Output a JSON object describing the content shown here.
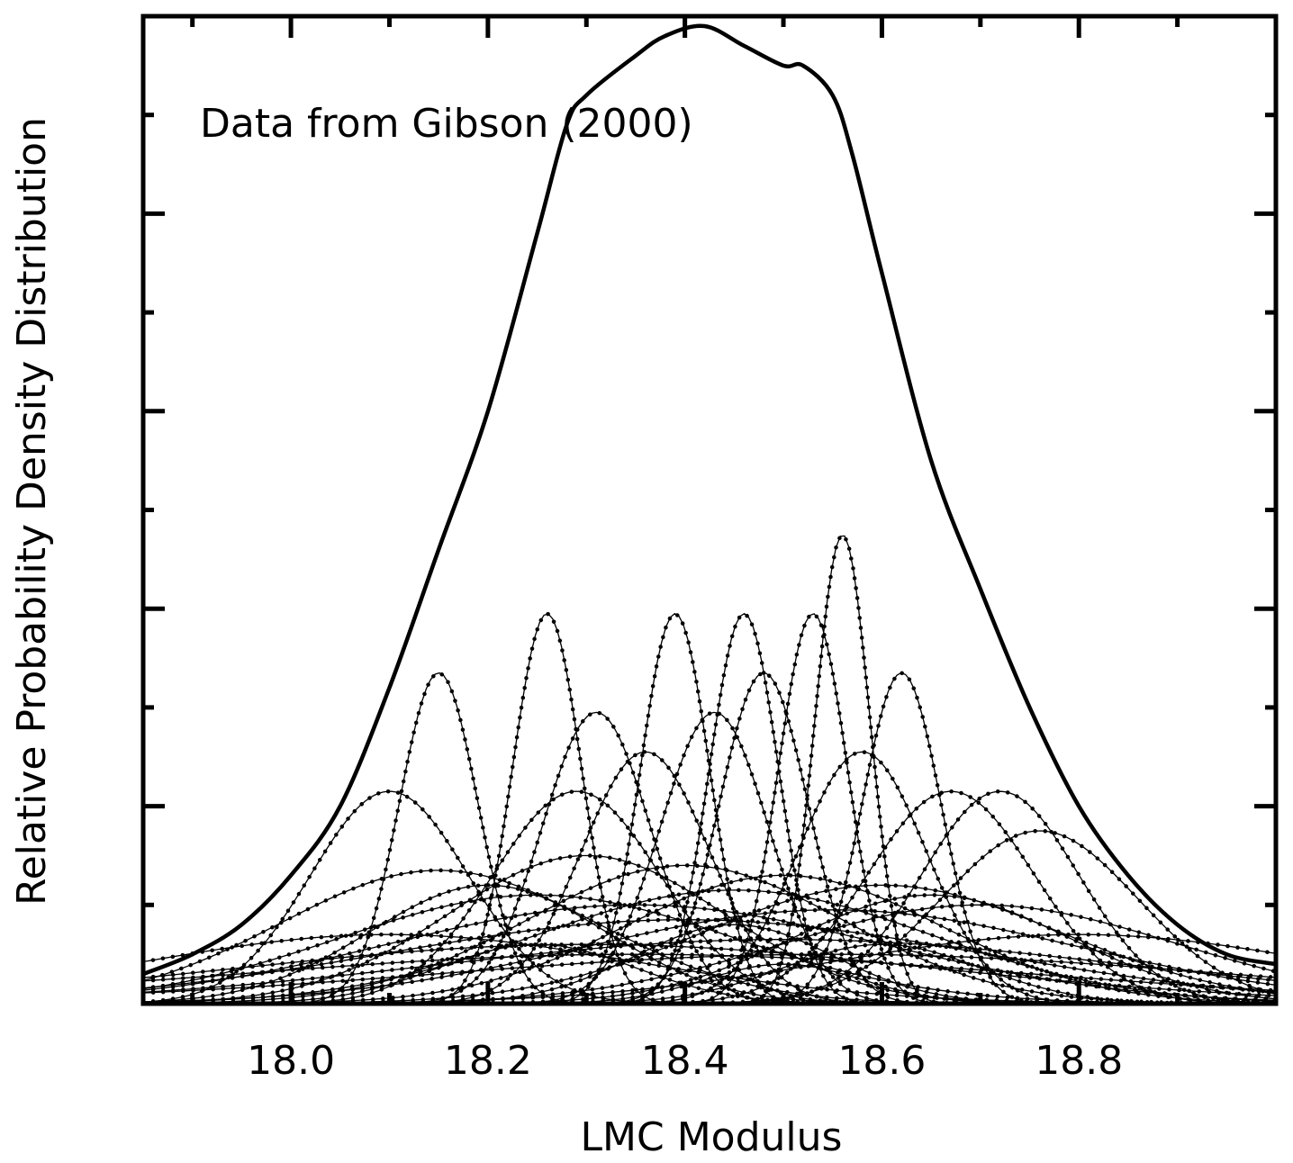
{
  "chart_data": {
    "type": "line",
    "annotation": "Data from Gibson (2000)",
    "xlabel": "LMC Modulus",
    "ylabel": "Relative Probability Density Distribution",
    "xlim": [
      17.85,
      19.0
    ],
    "ylim": [
      0,
      1.0
    ],
    "x_ticks": [
      "18.0",
      "18.2",
      "18.4",
      "18.6",
      "18.8"
    ],
    "y_tick_labels_shown": false,
    "grid": false,
    "legend": "none",
    "total_curve": {
      "name": "",
      "style": "solid-thick",
      "x": [
        17.85,
        17.9,
        17.95,
        18.0,
        18.05,
        18.1,
        18.15,
        18.2,
        18.25,
        18.28,
        18.3,
        18.35,
        18.38,
        18.42,
        18.46,
        18.5,
        18.52,
        18.55,
        18.57,
        18.6,
        18.65,
        18.7,
        18.75,
        18.8,
        18.85,
        18.9,
        18.95,
        19.0
      ],
      "y": [
        0.03,
        0.05,
        0.08,
        0.13,
        0.2,
        0.32,
        0.46,
        0.6,
        0.78,
        0.89,
        0.92,
        0.96,
        0.98,
        0.99,
        0.97,
        0.95,
        0.95,
        0.92,
        0.86,
        0.74,
        0.55,
        0.42,
        0.3,
        0.2,
        0.13,
        0.08,
        0.05,
        0.04
      ]
    },
    "component_curves_style": "dotted-gaussian",
    "component_gaussians": [
      {
        "mu": 18.15,
        "sigma": 0.04,
        "peak": 0.335
      },
      {
        "mu": 18.26,
        "sigma": 0.035,
        "peak": 0.395
      },
      {
        "mu": 18.39,
        "sigma": 0.035,
        "peak": 0.395
      },
      {
        "mu": 18.46,
        "sigma": 0.035,
        "peak": 0.395
      },
      {
        "mu": 18.53,
        "sigma": 0.035,
        "peak": 0.395
      },
      {
        "mu": 18.56,
        "sigma": 0.028,
        "peak": 0.475
      },
      {
        "mu": 18.62,
        "sigma": 0.04,
        "peak": 0.335
      },
      {
        "mu": 18.48,
        "sigma": 0.045,
        "peak": 0.335
      },
      {
        "mu": 18.31,
        "sigma": 0.055,
        "peak": 0.295
      },
      {
        "mu": 18.43,
        "sigma": 0.055,
        "peak": 0.295
      },
      {
        "mu": 18.36,
        "sigma": 0.065,
        "peak": 0.255
      },
      {
        "mu": 18.58,
        "sigma": 0.065,
        "peak": 0.255
      },
      {
        "mu": 18.1,
        "sigma": 0.08,
        "peak": 0.215
      },
      {
        "mu": 18.29,
        "sigma": 0.085,
        "peak": 0.215
      },
      {
        "mu": 18.67,
        "sigma": 0.085,
        "peak": 0.215
      },
      {
        "mu": 18.72,
        "sigma": 0.08,
        "peak": 0.215
      },
      {
        "mu": 18.76,
        "sigma": 0.1,
        "peak": 0.175
      },
      {
        "mu": 18.3,
        "sigma": 0.14,
        "peak": 0.15
      },
      {
        "mu": 18.4,
        "sigma": 0.16,
        "peak": 0.14
      },
      {
        "mu": 18.15,
        "sigma": 0.16,
        "peak": 0.135
      },
      {
        "mu": 18.5,
        "sigma": 0.16,
        "peak": 0.13
      },
      {
        "mu": 18.6,
        "sigma": 0.18,
        "peak": 0.12
      },
      {
        "mu": 18.25,
        "sigma": 0.2,
        "peak": 0.11
      },
      {
        "mu": 18.45,
        "sigma": 0.2,
        "peak": 0.115
      },
      {
        "mu": 18.7,
        "sigma": 0.2,
        "peak": 0.1
      },
      {
        "mu": 18.35,
        "sigma": 0.25,
        "peak": 0.1
      },
      {
        "mu": 18.55,
        "sigma": 0.25,
        "peak": 0.095
      },
      {
        "mu": 18.2,
        "sigma": 0.12,
        "peak": 0.12
      },
      {
        "mu": 18.65,
        "sigma": 0.14,
        "peak": 0.11
      },
      {
        "mu": 18.4,
        "sigma": 0.3,
        "peak": 0.085
      },
      {
        "mu": 18.1,
        "sigma": 0.25,
        "peak": 0.07
      },
      {
        "mu": 18.8,
        "sigma": 0.25,
        "peak": 0.07
      },
      {
        "mu": 18.5,
        "sigma": 0.35,
        "peak": 0.065
      },
      {
        "mu": 18.3,
        "sigma": 0.35,
        "peak": 0.06
      },
      {
        "mu": 18.45,
        "sigma": 0.1,
        "peak": 0.08
      },
      {
        "mu": 18.6,
        "sigma": 0.1,
        "peak": 0.06
      },
      {
        "mu": 18.25,
        "sigma": 0.1,
        "peak": 0.06
      },
      {
        "mu": 18.55,
        "sigma": 0.4,
        "peak": 0.05
      },
      {
        "mu": 18.35,
        "sigma": 0.4,
        "peak": 0.05
      },
      {
        "mu": 18.5,
        "sigma": 0.08,
        "peak": 0.04
      }
    ]
  }
}
